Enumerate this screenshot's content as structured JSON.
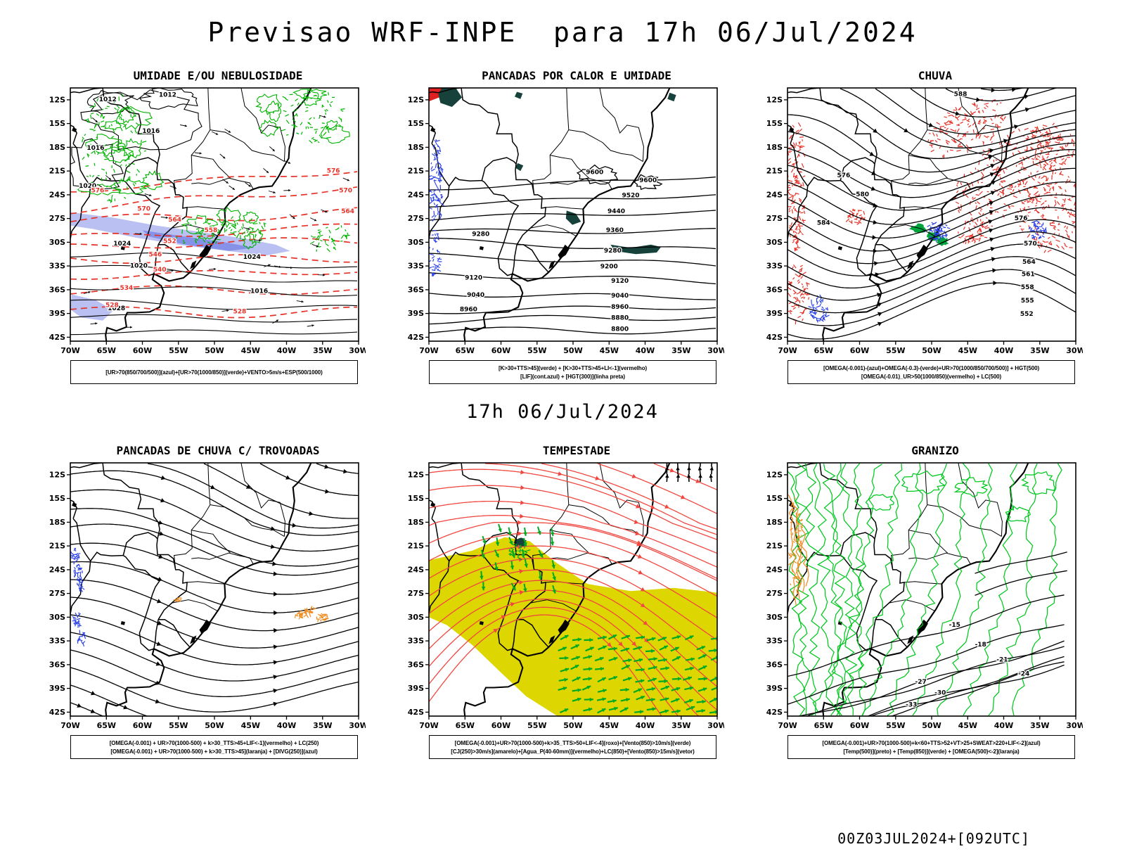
{
  "page": {
    "title": "Previsao WRF-INPE  para 17h 06/Jul/2024",
    "subtitle": "17h 06/Jul/2024",
    "footer": "00Z03JUL2024+[092UTC]"
  },
  "axes": {
    "lat_ticks": [
      "12S",
      "15S",
      "18S",
      "21S",
      "24S",
      "27S",
      "30S",
      "33S",
      "36S",
      "39S",
      "42S"
    ],
    "lon_ticks": [
      "70W",
      "65W",
      "60W",
      "55W",
      "50W",
      "45W",
      "40W",
      "35W",
      "30W"
    ]
  },
  "colors": {
    "black": "#000000",
    "red": "#e63228",
    "green": "#00b400",
    "blue": "#2d43e8",
    "orange": "#f08a1e",
    "dark_teal": "#17423c",
    "shade_blue": "#a9b2ef",
    "shade_blue_dark": "#7d88e6",
    "yellow": "#ddd600",
    "stream_red": "#f04840",
    "arrow_green": "#00aa22",
    "contour_green": "#00c81e",
    "fill_green": "#00a43c",
    "corner_red": "#e02020"
  },
  "panels": [
    {
      "id": "umidade",
      "title": "UMIDADE E/OU NEBULOSIDADE",
      "legend": [
        "[UR>70(850/700/500)](azul)+[UR>70(1000/850)](verde)+VENTO>5m/s+ESP(500/1000)"
      ],
      "contour_labels": [
        {
          "text": "1012",
          "color": "black",
          "lon": -64.8,
          "lat": -12.2
        },
        {
          "text": "1012",
          "color": "black",
          "lon": -56.5,
          "lat": -11.6
        },
        {
          "text": "1016",
          "color": "black",
          "lon": -66.5,
          "lat": -18.3
        },
        {
          "text": "1016",
          "color": "black",
          "lon": -58.8,
          "lat": -16.2
        },
        {
          "text": "1020",
          "color": "black",
          "lon": -67.6,
          "lat": -23.1
        },
        {
          "text": "1024",
          "color": "black",
          "lon": -62.8,
          "lat": -30.4
        },
        {
          "text": "1020",
          "color": "black",
          "lon": -60.5,
          "lat": -33.2
        },
        {
          "text": "1024",
          "color": "black",
          "lon": -44.8,
          "lat": -32.1
        },
        {
          "text": "1028",
          "color": "black",
          "lon": -63.6,
          "lat": -38.6
        },
        {
          "text": "1016",
          "color": "black",
          "lon": -43.8,
          "lat": -36.4
        },
        {
          "text": "576",
          "color": "red",
          "lon": -66.2,
          "lat": -23.7
        },
        {
          "text": "576",
          "color": "red",
          "lon": -33.5,
          "lat": -21.2
        },
        {
          "text": "570",
          "color": "red",
          "lon": -59.8,
          "lat": -26.0
        },
        {
          "text": "570",
          "color": "red",
          "lon": -31.8,
          "lat": -23.7
        },
        {
          "text": "564",
          "color": "red",
          "lon": -55.5,
          "lat": -27.4
        },
        {
          "text": "564",
          "color": "red",
          "lon": -31.5,
          "lat": -26.3
        },
        {
          "text": "558",
          "color": "red",
          "lon": -50.5,
          "lat": -28.7
        },
        {
          "text": "552",
          "color": "red",
          "lon": -56.2,
          "lat": -30.1
        },
        {
          "text": "546",
          "color": "red",
          "lon": -58.2,
          "lat": -31.8
        },
        {
          "text": "540",
          "color": "red",
          "lon": -57.6,
          "lat": -33.7
        },
        {
          "text": "534",
          "color": "red",
          "lon": -62.2,
          "lat": -36.0
        },
        {
          "text": "528",
          "color": "red",
          "lon": -64.2,
          "lat": -38.2
        },
        {
          "text": "528",
          "color": "red",
          "lon": -46.5,
          "lat": -39.0
        }
      ]
    },
    {
      "id": "calor",
      "title": "PANCADAS POR CALOR E UMIDADE",
      "legend": [
        "[K>30+TTS>45](verde) + [K>30+TTS>45+LI<-1](vermelho)",
        "[LIF](cont.azul) + [HGT(300)](linha preta)"
      ],
      "contour_labels": [
        {
          "text": "9600",
          "color": "black",
          "lon": -47.0,
          "lat": -21.4
        },
        {
          "text": "9600",
          "color": "black",
          "lon": -39.6,
          "lat": -22.4
        },
        {
          "text": "9520",
          "color": "black",
          "lon": -42.0,
          "lat": -24.3
        },
        {
          "text": "9440",
          "color": "black",
          "lon": -44.0,
          "lat": -26.3
        },
        {
          "text": "9360",
          "color": "black",
          "lon": -44.2,
          "lat": -28.7
        },
        {
          "text": "9280",
          "color": "black",
          "lon": -62.8,
          "lat": -29.2
        },
        {
          "text": "9280",
          "color": "black",
          "lon": -44.5,
          "lat": -31.3
        },
        {
          "text": "9200",
          "color": "black",
          "lon": -45.0,
          "lat": -33.3
        },
        {
          "text": "9120",
          "color": "black",
          "lon": -63.8,
          "lat": -34.7
        },
        {
          "text": "9120",
          "color": "black",
          "lon": -43.5,
          "lat": -35.1
        },
        {
          "text": "9040",
          "color": "black",
          "lon": -63.5,
          "lat": -36.9
        },
        {
          "text": "9040",
          "color": "black",
          "lon": -43.5,
          "lat": -37.0
        },
        {
          "text": "8960",
          "color": "black",
          "lon": -64.5,
          "lat": -38.7
        },
        {
          "text": "8960",
          "color": "black",
          "lon": -43.5,
          "lat": -38.4
        },
        {
          "text": "8880",
          "color": "black",
          "lon": -43.5,
          "lat": -39.8
        },
        {
          "text": "8800",
          "color": "black",
          "lon": -43.5,
          "lat": -41.2
        }
      ]
    },
    {
      "id": "chuva",
      "title": "CHUVA",
      "legend": [
        "[OMEGA(-0.001)-(azul)+OMEGA(-0.3)-(verde)+UR>70(1000/850/700/500)] + HGT(500)",
        "[OMEGA(-0.01)_UR>50(1000/850)(vermelho) + LC(500)"
      ],
      "contour_labels": [
        {
          "text": "588",
          "color": "black",
          "lon": -46.0,
          "lat": -11.5
        },
        {
          "text": "584",
          "color": "black",
          "lon": -65.0,
          "lat": -27.8
        },
        {
          "text": "580",
          "color": "black",
          "lon": -59.6,
          "lat": -24.2
        },
        {
          "text": "576",
          "color": "black",
          "lon": -62.2,
          "lat": -21.8
        },
        {
          "text": "576",
          "color": "black",
          "lon": -37.6,
          "lat": -27.2
        },
        {
          "text": "570",
          "color": "black",
          "lon": -36.3,
          "lat": -30.4
        },
        {
          "text": "564",
          "color": "black",
          "lon": -36.5,
          "lat": -32.7
        },
        {
          "text": "561",
          "color": "black",
          "lon": -36.6,
          "lat": -34.3
        },
        {
          "text": "558",
          "color": "black",
          "lon": -36.7,
          "lat": -35.9
        },
        {
          "text": "555",
          "color": "black",
          "lon": -36.7,
          "lat": -37.6
        },
        {
          "text": "552",
          "color": "black",
          "lon": -36.8,
          "lat": -39.3
        }
      ]
    },
    {
      "id": "trovoadas",
      "title": "PANCADAS DE CHUVA C/ TROVOADAS",
      "legend": [
        "[OMEGA(-0.001) + UR>70(1000-500) + k>30_TTS>45+LIF<-1](vermelho) + LC(250)",
        "[OMEGA(-0.001) + UR>70(1000-500) + k>30_TTS>45](laranja) + [DIVG(250)](azul)"
      ],
      "contour_labels": []
    },
    {
      "id": "tempestade",
      "title": "TEMPESTADE",
      "legend": [
        "[OMEGA(-0.001)+UR>70(1000-500)+k>35_TTS>50+LIF<-4](roxo)+[Vento(850)>10m/s](verde)",
        "[CJ(250)>30m/s](amarelo)+[Agua_P(40-60mm)](vermelho)+LC(850)+[Vento(850)>15m/s](vetor)"
      ],
      "contour_labels": []
    },
    {
      "id": "granizo",
      "title": "GRANIZO",
      "legend": [
        "[OMEGA(-0.001)+UR>70(1000-500)+k<60+TTS>52+VT>25+SWEAT>220+LIF<-2](azul)",
        "[Temp(500)](preto) + [Temp(850)](verde) + [OMEGA(500)<-2](laranja)"
      ],
      "contour_labels": [
        {
          "text": "-15",
          "color": "black",
          "lon": -46.8,
          "lat": -31.2
        },
        {
          "text": "-18",
          "color": "black",
          "lon": -43.2,
          "lat": -33.7
        },
        {
          "text": "-21",
          "color": "black",
          "lon": -40.2,
          "lat": -35.6
        },
        {
          "text": "-24",
          "color": "black",
          "lon": -37.2,
          "lat": -37.4
        },
        {
          "text": "-27",
          "color": "black",
          "lon": -51.5,
          "lat": -38.4
        },
        {
          "text": "-30",
          "color": "black",
          "lon": -48.8,
          "lat": -39.8
        },
        {
          "text": "-33",
          "color": "black",
          "lon": -52.8,
          "lat": -41.3
        }
      ]
    }
  ]
}
